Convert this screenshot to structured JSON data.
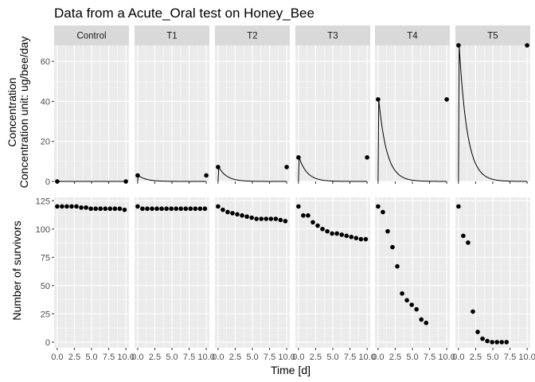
{
  "chart_data": {
    "type": "scatter",
    "title": "Data from a Acute_Oral test on Honey_Bee",
    "xlabel": "Time [d]",
    "xlim": [
      0,
      10
    ],
    "x_ticks": [
      0.0,
      2.5,
      5.0,
      7.5,
      10.0
    ],
    "x_tick_labels": [
      "0.0",
      "2.5",
      "5.0",
      "7.5",
      "10.0"
    ],
    "treatments": [
      "Control",
      "T1",
      "T2",
      "T3",
      "T4",
      "T5"
    ],
    "concentration": {
      "ylabel_line1": "Concentration",
      "ylabel_line2": "Concentration unit: ug/bee/day",
      "ylim": [
        0,
        68
      ],
      "y_ticks": [
        0,
        20,
        40,
        60
      ],
      "y_tick_labels": [
        "0",
        "20",
        "40",
        "60"
      ],
      "decay_rate": 0.85,
      "series": [
        {
          "name": "Control",
          "points": [
            [
              0,
              0
            ],
            [
              10,
              0
            ]
          ],
          "curve_peak": 0
        },
        {
          "name": "T1",
          "points": [
            [
              0,
              3
            ],
            [
              10,
              3
            ]
          ],
          "curve_peak": 3
        },
        {
          "name": "T2",
          "points": [
            [
              0,
              7.2
            ],
            [
              10,
              7.2
            ]
          ],
          "curve_peak": 7.2
        },
        {
          "name": "T3",
          "points": [
            [
              0,
              12
            ],
            [
              10,
              12
            ]
          ],
          "curve_peak": 12
        },
        {
          "name": "T4",
          "points": [
            [
              0,
              41
            ],
            [
              10,
              41
            ]
          ],
          "curve_peak": 41
        },
        {
          "name": "T5",
          "points": [
            [
              0,
              68
            ],
            [
              10,
              68
            ]
          ],
          "curve_peak": 68
        }
      ]
    },
    "survivors": {
      "ylabel": "Number of survivors",
      "ylim": [
        -5,
        128
      ],
      "y_ticks": [
        0,
        25,
        50,
        75,
        100,
        125
      ],
      "y_tick_labels": [
        "0",
        "25",
        "50",
        "75",
        "100",
        "125"
      ],
      "x": [
        0,
        0.7,
        1.4,
        2.1,
        2.8,
        3.5,
        4.2,
        4.9,
        5.6,
        6.3,
        7.0,
        7.7,
        8.4,
        9.1,
        9.8
      ],
      "series": [
        {
          "name": "Control",
          "values": [
            120,
            120,
            120,
            120,
            120,
            119,
            119,
            118,
            118,
            118,
            118,
            118,
            118,
            118,
            117
          ]
        },
        {
          "name": "T1",
          "values": [
            120,
            118,
            118,
            118,
            118,
            118,
            118,
            118,
            118,
            118,
            118,
            118,
            118,
            118,
            118
          ]
        },
        {
          "name": "T2",
          "values": [
            120,
            117,
            115,
            114,
            113,
            112,
            111,
            110,
            109,
            109,
            109,
            109,
            109,
            108,
            107
          ]
        },
        {
          "name": "T3",
          "values": [
            120,
            112,
            112,
            106,
            103,
            100,
            98,
            96,
            96,
            95,
            94,
            93,
            92,
            91,
            91
          ]
        },
        {
          "name": "T4",
          "values": [
            120,
            115,
            98,
            84,
            67,
            43,
            37,
            33,
            29,
            20,
            17
          ]
        },
        {
          "name": "T5",
          "values": [
            120,
            94,
            88,
            27,
            9,
            3,
            1,
            0,
            0,
            0,
            0
          ]
        }
      ]
    }
  }
}
